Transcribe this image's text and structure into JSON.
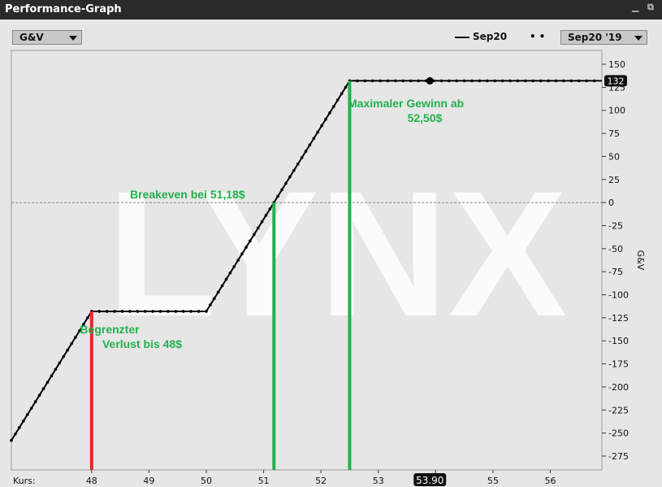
{
  "window": {
    "title": "Performance-Graph"
  },
  "toolbar": {
    "metric_select": "G&V",
    "legend_line_label": "Sep20",
    "expiry_select": "Sep20 '19"
  },
  "colors": {
    "line": "#000000",
    "loss_marker": "#e8282d",
    "gain_marker": "#22b14c",
    "annotation": "#22b14c",
    "watermark": "#ffffff",
    "plot_bg": "#e6e6e6"
  },
  "chart_data": {
    "type": "line",
    "watermark": "LYNX",
    "xlabel": "Kurs:",
    "ylabel": "G&V",
    "xlim": [
      46.6,
      56.9
    ],
    "ylim": [
      -290,
      165
    ],
    "x_ticks": [
      48,
      49,
      50,
      51,
      52,
      53,
      54,
      55,
      56
    ],
    "x_tick_labels": [
      "48",
      "49",
      "50",
      "51",
      "52",
      "53",
      "",
      "55",
      "56"
    ],
    "y_ticks": [
      150,
      125,
      100,
      75,
      50,
      25,
      0,
      -25,
      -50,
      -75,
      -100,
      -125,
      -150,
      -175,
      -200,
      -225,
      -250,
      -275
    ],
    "zero_line": true,
    "series": [
      {
        "values_x": [
          46.6,
          48.0,
          50.0,
          51.18,
          52.5,
          56.9
        ],
        "values_y": [
          -258,
          -118,
          -118,
          0,
          132,
          132
        ]
      }
    ],
    "current_price": {
      "x": 53.9,
      "label": "53.90",
      "y": 132,
      "value_label": "132"
    },
    "markers": [
      {
        "x": 48.0,
        "color": "#e8282d",
        "lines": [
          "Begrenzter",
          "Verlust bis 48$"
        ]
      },
      {
        "x": 51.18,
        "color": "#22b14c",
        "lines": [
          "Breakeven bei 51,18$"
        ]
      },
      {
        "x": 52.5,
        "color": "#22b14c",
        "lines": [
          "Maximaler Gewinn ab",
          "52,50$"
        ]
      }
    ]
  }
}
